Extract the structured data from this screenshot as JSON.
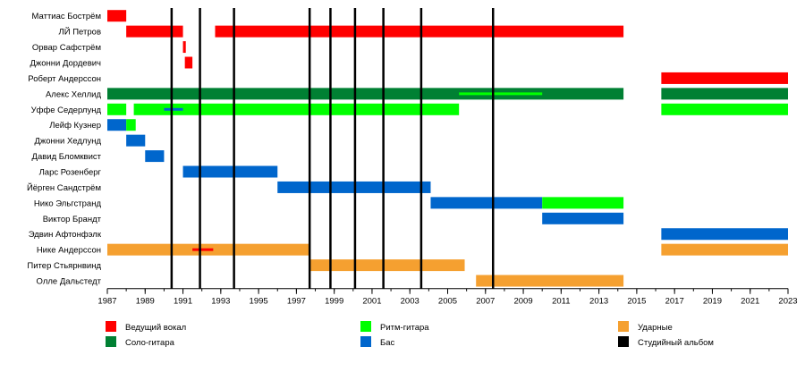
{
  "chart_data": {
    "type": "timeline",
    "xlim": [
      1987,
      2023
    ],
    "x_ticks": [
      "1987",
      "1989",
      "1991",
      "1993",
      "1995",
      "1997",
      "1999",
      "2001",
      "2003",
      "2005",
      "2007",
      "2009",
      "2011",
      "2013",
      "2015",
      "2017",
      "2019",
      "2021",
      "2023"
    ],
    "roles": [
      {
        "key": "vocal",
        "label": "Ведущий вокал",
        "color": "#ff0000"
      },
      {
        "key": "lead",
        "label": "Соло-гитара",
        "color": "#008033"
      },
      {
        "key": "rhythm",
        "label": "Ритм-гитара",
        "color": "#00ff00"
      },
      {
        "key": "bass",
        "label": "Бас",
        "color": "#0066cc"
      },
      {
        "key": "drums",
        "label": "Ударные",
        "color": "#f5a030"
      },
      {
        "key": "album",
        "label": "Студийный альбом",
        "color": "#000000"
      }
    ],
    "members": [
      {
        "name": "Маттиас Бострём",
        "bars": [
          {
            "role": "vocal",
            "start": 1987.0,
            "end": 1988.0
          }
        ]
      },
      {
        "name": "ЛЙ Петров",
        "bars": [
          {
            "role": "vocal",
            "start": 1988.0,
            "end": 1991.0
          },
          {
            "role": "vocal",
            "start": 1992.7,
            "end": 2014.3
          }
        ]
      },
      {
        "name": "Орвар Сафстрём",
        "bars": [
          {
            "role": "vocal",
            "start": 1991.0,
            "end": 1991.15
          }
        ]
      },
      {
        "name": "Джонни Дордевич",
        "bars": [
          {
            "role": "vocal",
            "start": 1991.1,
            "end": 1991.5
          }
        ]
      },
      {
        "name": "Роберт Андерссон",
        "bars": [
          {
            "role": "vocal",
            "start": 2016.3,
            "end": 2023.0
          }
        ]
      },
      {
        "name": "Алекс Хеллид",
        "bars": [
          {
            "role": "lead",
            "start": 1987.0,
            "end": 2014.3
          },
          {
            "role": "lead",
            "start": 2016.3,
            "end": 2023.0
          }
        ],
        "overlays": [
          {
            "role": "rhythm",
            "start": 2005.6,
            "end": 2010.0
          }
        ]
      },
      {
        "name": "Уффе Седерлунд",
        "bars": [
          {
            "role": "rhythm",
            "start": 1987.0,
            "end": 1988.0
          },
          {
            "role": "rhythm",
            "start": 1988.4,
            "end": 2005.6
          },
          {
            "role": "rhythm",
            "start": 2016.3,
            "end": 2023.0
          }
        ],
        "overlays": [
          {
            "role": "bass",
            "start": 1990.0,
            "end": 1991.0
          }
        ]
      },
      {
        "name": "Лейф Кузнер",
        "bars": [
          {
            "role": "bass",
            "start": 1987.0,
            "end": 1988.0
          },
          {
            "role": "rhythm",
            "start": 1988.0,
            "end": 1988.5
          }
        ]
      },
      {
        "name": "Джонни Хедлунд",
        "bars": [
          {
            "role": "bass",
            "start": 1988.0,
            "end": 1989.0
          }
        ]
      },
      {
        "name": "Давид Бломквист",
        "bars": [
          {
            "role": "bass",
            "start": 1989.0,
            "end": 1990.0
          }
        ]
      },
      {
        "name": "Ларс Розенберг",
        "bars": [
          {
            "role": "bass",
            "start": 1991.0,
            "end": 1996.0
          }
        ]
      },
      {
        "name": "Йёрген Сандстрём",
        "bars": [
          {
            "role": "bass",
            "start": 1996.0,
            "end": 2004.1
          }
        ]
      },
      {
        "name": "Нико Эльгстранд",
        "bars": [
          {
            "role": "bass",
            "start": 2004.1,
            "end": 2010.0
          },
          {
            "role": "rhythm",
            "start": 2010.0,
            "end": 2014.3
          }
        ]
      },
      {
        "name": "Виктор Брандт",
        "bars": [
          {
            "role": "bass",
            "start": 2010.0,
            "end": 2014.3
          }
        ]
      },
      {
        "name": "Эдвин Афтонфэлк",
        "bars": [
          {
            "role": "bass",
            "start": 2016.3,
            "end": 2023.0
          }
        ]
      },
      {
        "name": "Нике Андерссон",
        "bars": [
          {
            "role": "drums",
            "start": 1987.0,
            "end": 1997.7
          },
          {
            "role": "drums",
            "start": 2016.3,
            "end": 2023.0
          }
        ],
        "overlays": [
          {
            "role": "vocal",
            "start": 1991.5,
            "end": 1992.6
          }
        ]
      },
      {
        "name": "Питер Стьярнвинд",
        "bars": [
          {
            "role": "drums",
            "start": 1997.7,
            "end": 2005.9
          }
        ]
      },
      {
        "name": "Олле Дальстедт",
        "bars": [
          {
            "role": "drums",
            "start": 2006.5,
            "end": 2014.3
          }
        ]
      }
    ],
    "albums": [
      1990.4,
      1991.9,
      1993.7,
      1997.7,
      1998.8,
      2000.1,
      2001.6,
      2003.6,
      2007.4
    ]
  }
}
